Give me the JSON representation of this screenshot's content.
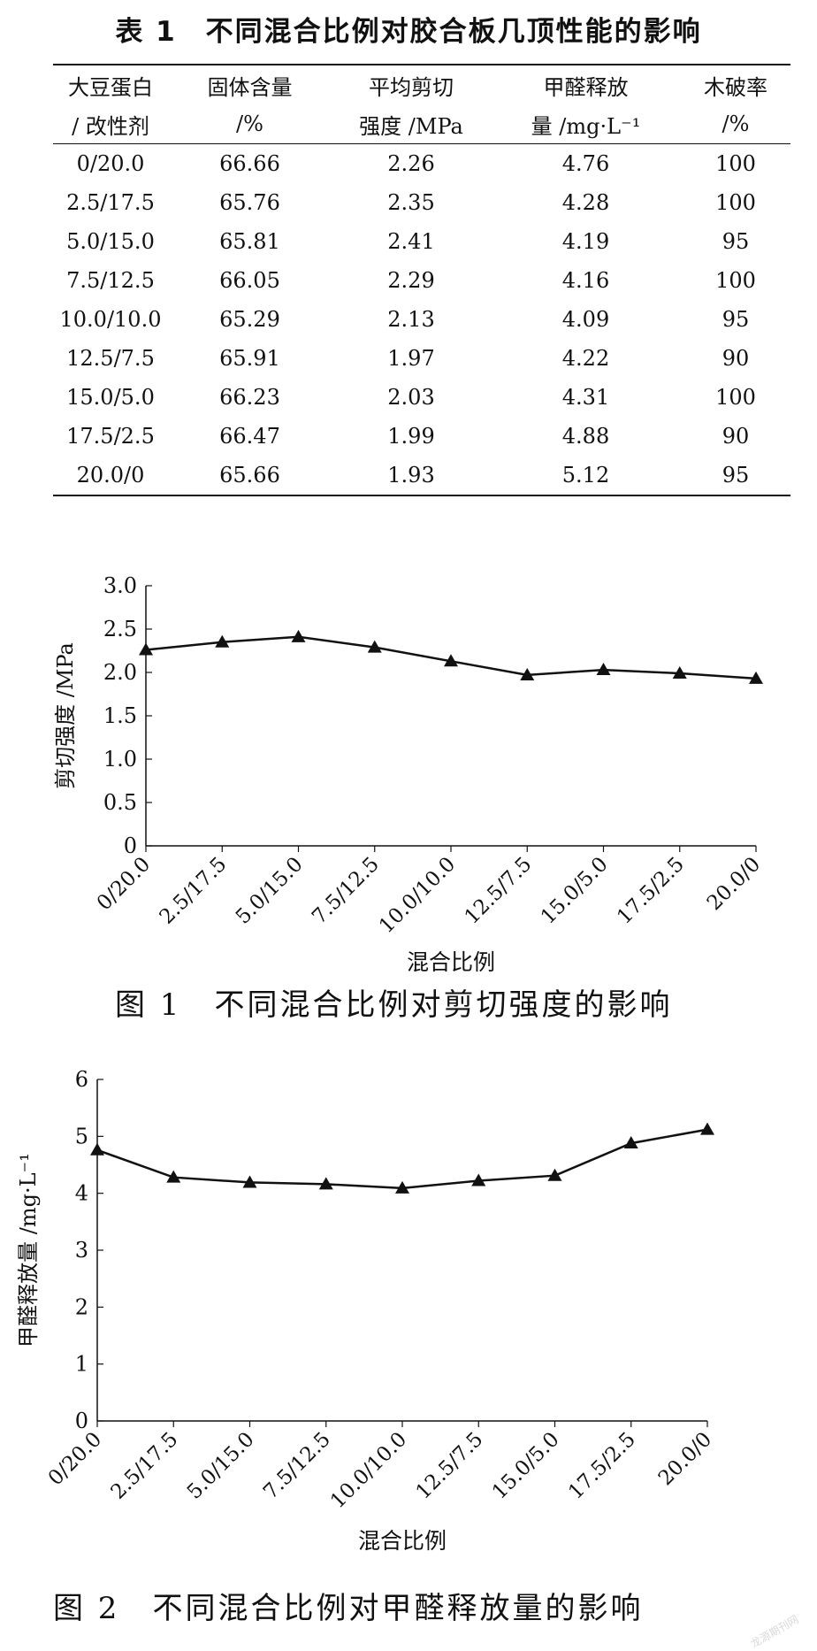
{
  "table": {
    "title": "表 1　不同混合比例对胶合板几顶性能的影响",
    "headers": [
      [
        "大豆蛋白",
        "/ 改性剂"
      ],
      [
        "固体含量",
        "/%"
      ],
      [
        "平均剪切",
        "强度 /MPa"
      ],
      [
        "甲醛释放",
        "量 /mg·L⁻¹"
      ],
      [
        "木破率",
        "/%"
      ]
    ],
    "rows": [
      [
        "0/20.0",
        "66.66",
        "2.26",
        "4.76",
        "100"
      ],
      [
        "2.5/17.5",
        "65.76",
        "2.35",
        "4.28",
        "100"
      ],
      [
        "5.0/15.0",
        "65.81",
        "2.41",
        "4.19",
        "95"
      ],
      [
        "7.5/12.5",
        "66.05",
        "2.29",
        "4.16",
        "100"
      ],
      [
        "10.0/10.0",
        "65.29",
        "2.13",
        "4.09",
        "95"
      ],
      [
        "12.5/7.5",
        "65.91",
        "1.97",
        "4.22",
        "90"
      ],
      [
        "15.0/5.0",
        "66.23",
        "2.03",
        "4.31",
        "100"
      ],
      [
        "17.5/2.5",
        "66.47",
        "1.99",
        "4.88",
        "90"
      ],
      [
        "20.0/0",
        "65.66",
        "1.93",
        "5.12",
        "95"
      ]
    ]
  },
  "chart_data": [
    {
      "type": "line",
      "title": "",
      "categories": [
        "0/20.0",
        "2.5/17.5",
        "5.0/15.0",
        "7.5/12.5",
        "10.0/10.0",
        "12.5/7.5",
        "15.0/5.0",
        "17.5/2.5",
        "20.0/0"
      ],
      "series": [
        {
          "values": [
            2.26,
            2.35,
            2.41,
            2.29,
            2.13,
            1.97,
            2.03,
            1.99,
            1.93
          ]
        }
      ],
      "xlabel": "混合比例",
      "ylabel": "剪切强度 /MPa",
      "ylim": [
        0,
        3.0
      ],
      "yticks": [
        "0",
        "0.5",
        "1.0",
        "1.5",
        "2.0",
        "2.5",
        "3.0"
      ],
      "marker": "triangle",
      "grid": false,
      "legend": "none"
    },
    {
      "type": "line",
      "title": "",
      "categories": [
        "0/20.0",
        "2.5/17.5",
        "5.0/15.0",
        "7.5/12.5",
        "10.0/10.0",
        "12.5/7.5",
        "15.0/5.0",
        "17.5/2.5",
        "20.0/0"
      ],
      "series": [
        {
          "values": [
            4.76,
            4.28,
            4.19,
            4.16,
            4.09,
            4.22,
            4.31,
            4.88,
            5.12
          ]
        }
      ],
      "xlabel": "混合比例",
      "ylabel": "甲醛释放量 /mg·L⁻¹",
      "ylim": [
        0,
        6
      ],
      "yticks": [
        "0",
        "1",
        "2",
        "3",
        "4",
        "5",
        "6"
      ],
      "marker": "triangle",
      "grid": false,
      "legend": "none"
    }
  ],
  "figures": {
    "fig1_caption": "图 1　不同混合比例对剪切强度的影响",
    "fig2_caption": "图 2　不同混合比例对甲醛释放量的影响"
  },
  "watermark": "龙源期刊网",
  "colors": {
    "ink": "#111111",
    "watermark": "#d9d9d9"
  }
}
